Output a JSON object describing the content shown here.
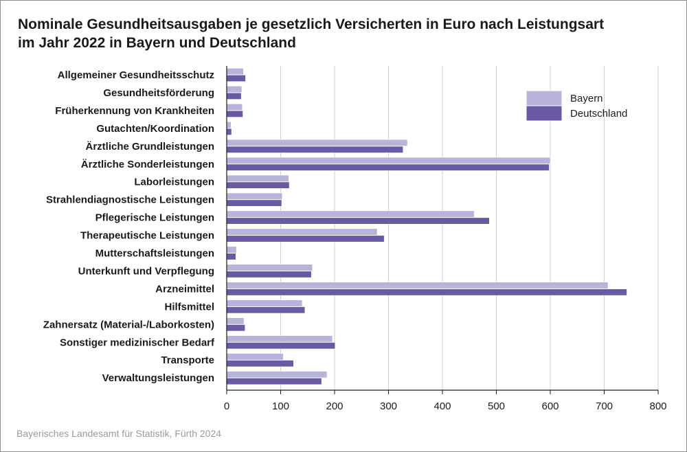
{
  "chart_data": {
    "type": "bar",
    "orientation": "horizontal",
    "title_lines": [
      "Nominale Gesundheitsausgaben je gesetzlich Versicherten in Euro nach Leistungsart",
      "im Jahr 2022 in Bayern und Deutschland"
    ],
    "categories": [
      "Allgemeiner Gesundheitsschutz",
      "Gesundheitsförderung",
      "Früherkennung von Krankheiten",
      "Gutachten/Koordination",
      "Ärztliche Grundleistungen",
      "Ärztliche Sonderleistungen",
      "Laborleistungen",
      "Strahlendiagnostische Leistungen",
      "Pflegerische Leistungen",
      "Therapeutische Leistungen",
      "Mutterschaftsleistungen",
      "Unterkunft und Verpflegung",
      "Arzneimittel",
      "Hilfsmittel",
      "Zahnersatz (Material-/Laborkosten)",
      "Sonstiger medizinischer Bedarf",
      "Transporte",
      "Verwaltungsleistungen"
    ],
    "series": [
      {
        "name": "Bayern",
        "color": "#b8b3da",
        "values": [
          31,
          28,
          29,
          8,
          335,
          600,
          115,
          103,
          459,
          279,
          18,
          159,
          707,
          140,
          32,
          196,
          105,
          186
        ]
      },
      {
        "name": "Deutschland",
        "color": "#6a5aa6",
        "values": [
          35,
          27,
          30,
          9,
          327,
          598,
          116,
          102,
          487,
          292,
          17,
          157,
          742,
          145,
          34,
          201,
          124,
          176
        ]
      }
    ],
    "xlim": [
      0,
      800
    ],
    "xticks": [
      0,
      100,
      200,
      300,
      400,
      500,
      600,
      700,
      800
    ],
    "grid": true,
    "legend_position": "top-right",
    "xlabel": "",
    "ylabel": ""
  },
  "source": "Bayerisches Landesamt für Statistik, Fürth 2024"
}
